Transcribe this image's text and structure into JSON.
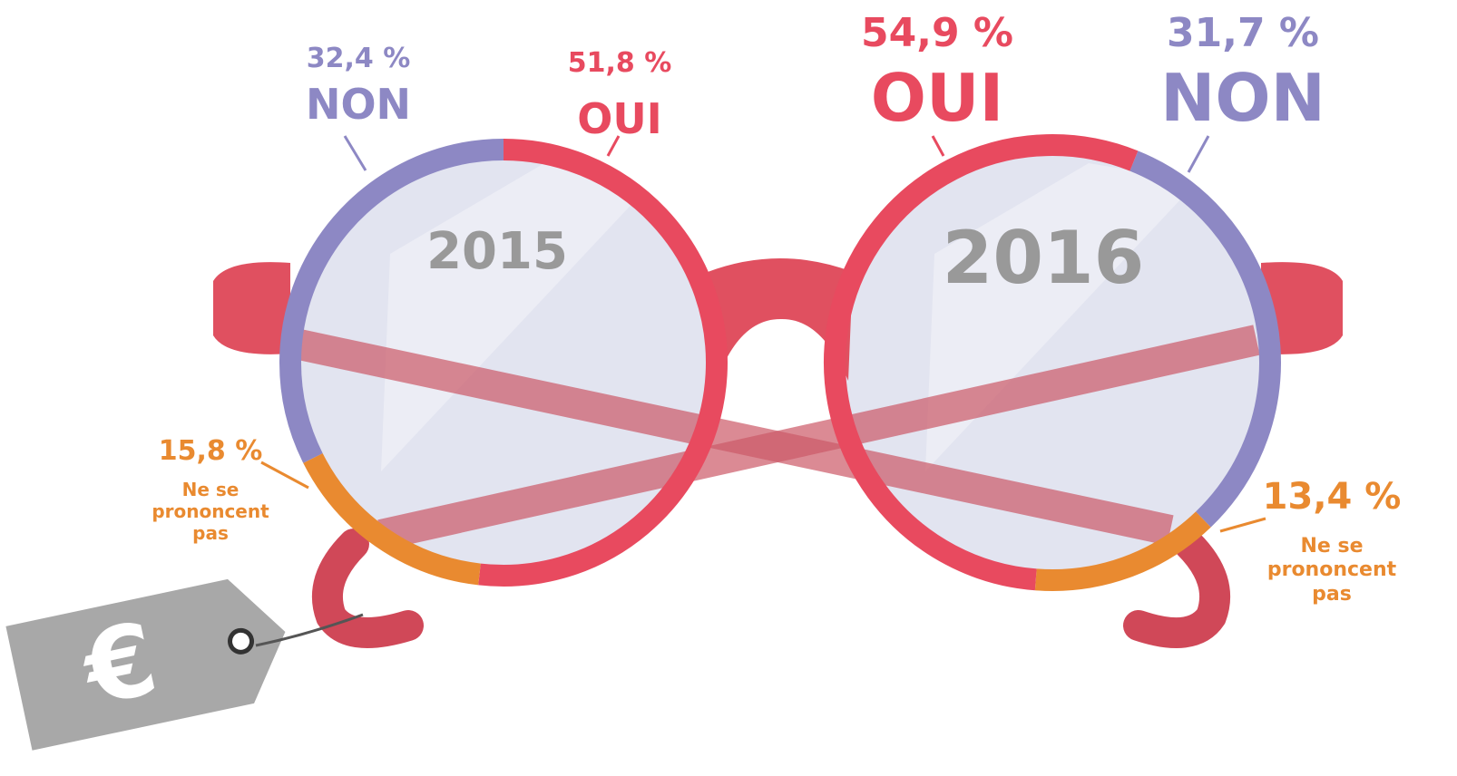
{
  "chart_data": [
    {
      "type": "donut",
      "title": "2015",
      "categories": [
        "OUI",
        "Ne se prononcent pas",
        "NON"
      ],
      "values": [
        51.8,
        15.8,
        32.4
      ],
      "value_labels": [
        "51,8 %",
        "15,8 %",
        "32,4 %"
      ],
      "colors": [
        "#e84a5f",
        "#e98a30",
        "#8d88c4"
      ]
    },
    {
      "type": "donut",
      "title": "2016",
      "categories": [
        "NON",
        "Ne se prononcent pas",
        "OUI"
      ],
      "values": [
        31.7,
        13.4,
        54.9
      ],
      "value_labels": [
        "31,7 %",
        "13,4 %",
        "54,9 %"
      ],
      "colors": [
        "#8d88c4",
        "#e98a30",
        "#e84a5f"
      ]
    }
  ]
}
